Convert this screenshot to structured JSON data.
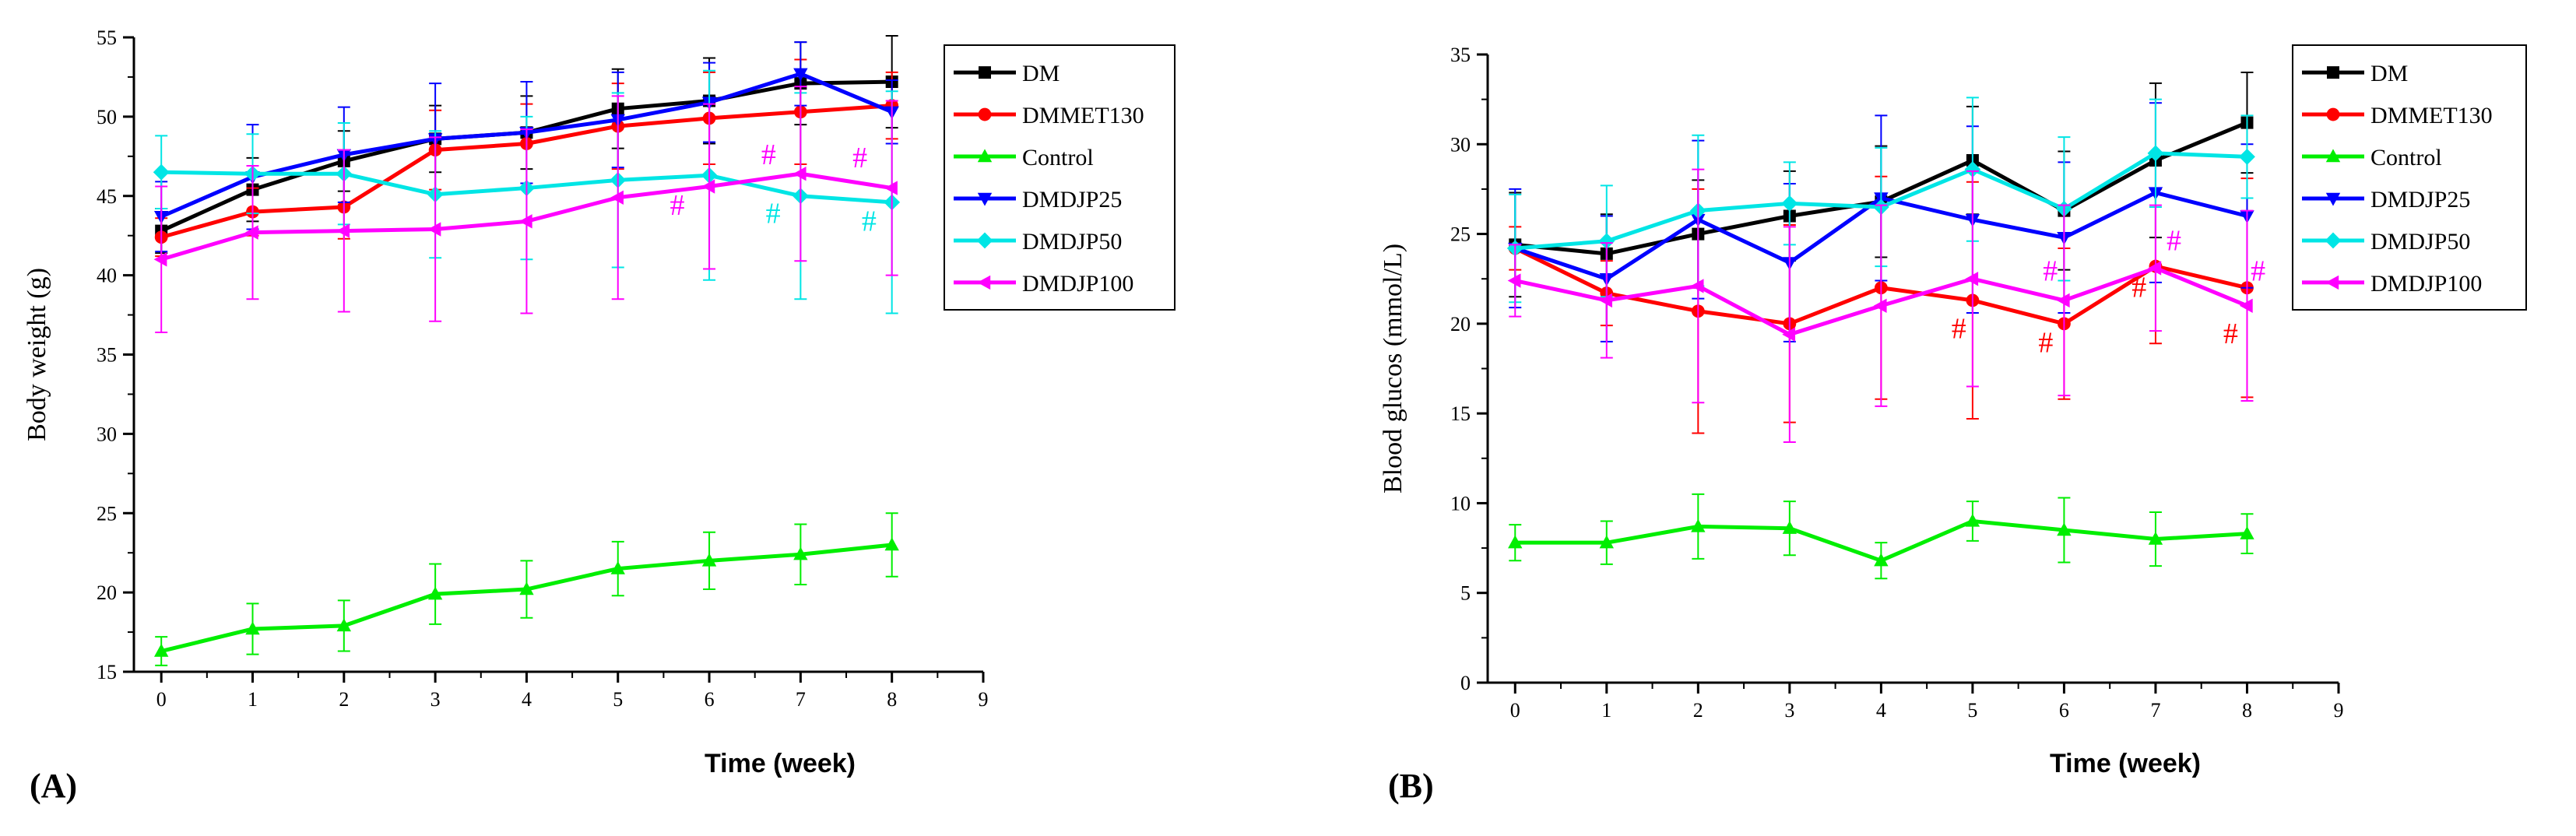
{
  "chart_data": [
    {
      "type": "line",
      "panel_label": "(A)",
      "xlabel": "Time (week)",
      "ylabel": "Body weight (g)",
      "xlim": [
        -0.3,
        9
      ],
      "ylim": [
        15,
        55
      ],
      "x_ticks": [
        0,
        1,
        2,
        3,
        4,
        5,
        6,
        7,
        8,
        9
      ],
      "y_ticks": [
        15,
        20,
        25,
        30,
        35,
        40,
        45,
        50,
        55
      ],
      "x": [
        0,
        1,
        2,
        3,
        4,
        5,
        6,
        7,
        8
      ],
      "legend_position": "top-right",
      "series": [
        {
          "name": "DM",
          "color": "#000000",
          "marker": "square",
          "values": [
            42.8,
            45.4,
            47.2,
            48.6,
            49.0,
            50.5,
            51.0,
            52.1,
            52.2
          ],
          "errors": [
            1.4,
            2.0,
            1.9,
            2.1,
            2.3,
            2.5,
            2.7,
            2.6,
            2.9
          ]
        },
        {
          "name": "DMMET130",
          "color": "#ff0000",
          "marker": "circle",
          "values": [
            42.4,
            44.0,
            44.3,
            47.9,
            48.3,
            49.4,
            49.9,
            50.3,
            50.7
          ],
          "errors": [
            1.2,
            1.5,
            2.0,
            2.5,
            2.5,
            2.7,
            2.9,
            3.3,
            2.1
          ]
        },
        {
          "name": "Control",
          "color": "#00ee00",
          "marker": "triangle-up",
          "values": [
            16.3,
            17.7,
            17.9,
            19.9,
            20.2,
            21.5,
            22.0,
            22.4,
            23.0
          ],
          "errors": [
            0.9,
            1.6,
            1.6,
            1.9,
            1.8,
            1.7,
            1.8,
            1.9,
            2.0
          ]
        },
        {
          "name": "DMDJP25",
          "color": "#0000ff",
          "marker": "triangle-down",
          "values": [
            43.7,
            46.2,
            47.6,
            48.6,
            49.0,
            49.8,
            50.9,
            52.7,
            50.3
          ],
          "errors": [
            2.2,
            3.3,
            3.0,
            3.5,
            3.2,
            3.0,
            2.5,
            2.0,
            2.0
          ]
        },
        {
          "name": "DMDJP50",
          "color": "#00e5e5",
          "marker": "diamond",
          "values": [
            46.5,
            46.4,
            46.4,
            45.1,
            45.5,
            46.0,
            46.3,
            45.0,
            44.6
          ],
          "errors": [
            2.3,
            2.5,
            3.2,
            4.0,
            4.5,
            5.5,
            6.6,
            6.5,
            7.0
          ]
        },
        {
          "name": "DMDJP100",
          "color": "#ff00ff",
          "marker": "triangle-left",
          "values": [
            41.0,
            42.7,
            42.8,
            42.9,
            43.4,
            44.9,
            45.6,
            46.4,
            45.5
          ],
          "errors": [
            4.6,
            4.2,
            5.1,
            5.8,
            5.8,
            6.4,
            5.2,
            5.5,
            5.5
          ]
        }
      ],
      "annotations": [
        {
          "text": "#",
          "x": 5.65,
          "y": 43.8,
          "color": "#ff00ff"
        },
        {
          "text": "#",
          "x": 6.65,
          "y": 47.0,
          "color": "#ff00ff"
        },
        {
          "text": "#",
          "x": 7.65,
          "y": 46.8,
          "color": "#ff00ff"
        },
        {
          "text": "#",
          "x": 6.7,
          "y": 43.3,
          "color": "#00e5e5"
        },
        {
          "text": "#",
          "x": 7.75,
          "y": 42.8,
          "color": "#00e5e5"
        }
      ]
    },
    {
      "type": "line",
      "panel_label": "(B)",
      "xlabel": "Time (week)",
      "ylabel": "Blood glucos (mmol/L)",
      "xlim": [
        -0.3,
        9
      ],
      "ylim": [
        0,
        35
      ],
      "x_ticks": [
        0,
        1,
        2,
        3,
        4,
        5,
        6,
        7,
        8,
        9
      ],
      "y_ticks": [
        0,
        5,
        10,
        15,
        20,
        25,
        30,
        35
      ],
      "x": [
        0,
        1,
        2,
        3,
        4,
        5,
        6,
        7,
        8
      ],
      "legend_position": "top-right",
      "series": [
        {
          "name": "DM",
          "color": "#000000",
          "marker": "square",
          "values": [
            24.4,
            23.9,
            25.0,
            26.0,
            26.8,
            29.1,
            26.3,
            29.1,
            31.2
          ],
          "errors": [
            2.9,
            2.2,
            3.0,
            2.5,
            3.1,
            3.0,
            3.3,
            4.3,
            2.8
          ]
        },
        {
          "name": "DMMET130",
          "color": "#ff0000",
          "marker": "circle",
          "values": [
            24.2,
            21.7,
            20.7,
            20.0,
            22.0,
            21.3,
            20.0,
            23.2,
            22.0
          ],
          "errors": [
            1.2,
            1.8,
            6.8,
            5.5,
            6.2,
            6.6,
            4.2,
            4.3,
            6.1
          ]
        },
        {
          "name": "Control",
          "color": "#00ee00",
          "marker": "triangle-up",
          "values": [
            7.8,
            7.8,
            8.7,
            8.6,
            6.8,
            9.0,
            8.5,
            8.0,
            8.3
          ],
          "errors": [
            1.0,
            1.2,
            1.8,
            1.5,
            1.0,
            1.1,
            1.8,
            1.5,
            1.1
          ]
        },
        {
          "name": "DMDJP25",
          "color": "#0000ff",
          "marker": "triangle-down",
          "values": [
            24.2,
            22.5,
            25.8,
            23.4,
            27.0,
            25.8,
            24.8,
            27.3,
            26.0
          ],
          "errors": [
            3.3,
            3.5,
            4.4,
            4.4,
            4.6,
            5.2,
            4.2,
            5.0,
            4.0
          ]
        },
        {
          "name": "DMDJP50",
          "color": "#00e5e5",
          "marker": "diamond",
          "values": [
            24.2,
            24.6,
            26.3,
            26.7,
            26.5,
            28.6,
            26.4,
            29.5,
            29.3
          ],
          "errors": [
            3.0,
            3.1,
            4.2,
            2.3,
            3.3,
            4.0,
            4.0,
            3.0,
            2.3
          ]
        },
        {
          "name": "DMDJP100",
          "color": "#ff00ff",
          "marker": "triangle-left",
          "values": [
            22.4,
            21.3,
            22.1,
            19.4,
            21.0,
            22.5,
            21.3,
            23.1,
            21.0
          ],
          "errors": [
            2.0,
            3.2,
            6.5,
            6.0,
            5.6,
            6.0,
            5.3,
            3.5,
            5.3
          ]
        }
      ],
      "annotations": [
        {
          "text": "#",
          "x": 4.85,
          "y": 19.2,
          "color": "#ff0000"
        },
        {
          "text": "#",
          "x": 5.8,
          "y": 18.4,
          "color": "#ff0000"
        },
        {
          "text": "#",
          "x": 6.82,
          "y": 21.5,
          "color": "#ff0000"
        },
        {
          "text": "#",
          "x": 7.82,
          "y": 18.9,
          "color": "#ff0000"
        },
        {
          "text": "#",
          "x": 5.85,
          "y": 22.4,
          "color": "#ff00ff"
        },
        {
          "text": "#",
          "x": 7.2,
          "y": 24.1,
          "color": "#ff00ff"
        },
        {
          "text": "#",
          "x": 8.12,
          "y": 22.4,
          "color": "#ff00ff"
        }
      ]
    }
  ]
}
